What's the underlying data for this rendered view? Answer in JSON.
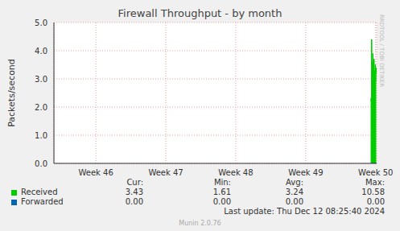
{
  "chart_data": {
    "type": "area",
    "title": "Firewall Throughput - by month",
    "y_label": "Packets/second",
    "x": [
      31.7,
      31.74,
      31.78,
      31.82,
      31.86,
      31.9,
      31.94,
      31.98,
      32.02,
      32.06,
      32.1,
      32.14,
      32.18,
      32.22,
      32.26
    ],
    "series": [
      {
        "name": "Received",
        "color": "#00cc00",
        "values": [
          2.3,
          2.2,
          4.4,
          3.6,
          2.9,
          3.9,
          3.1,
          2.8,
          3.7,
          3.3,
          3.0,
          3.5,
          2.9,
          3.2,
          3.4
        ]
      },
      {
        "name": "Forwarded",
        "color": "#0066b3",
        "values": [
          0,
          0,
          0,
          0,
          0,
          0,
          0,
          0,
          0,
          0,
          0,
          0,
          0,
          0,
          0
        ]
      }
    ],
    "xlim": [
      0,
      32.3
    ],
    "xticks": [
      {
        "value": 4.2,
        "label": "Week 46"
      },
      {
        "value": 11.2,
        "label": "Week 47"
      },
      {
        "value": 18.2,
        "label": "Week 48"
      },
      {
        "value": 25.2,
        "label": "Week 49"
      },
      {
        "value": 32.2,
        "label": "Week 50"
      }
    ],
    "ylim": [
      0,
      5
    ],
    "yticks": [
      {
        "value": 0,
        "label": "0.0"
      },
      {
        "value": 1,
        "label": "1.0"
      },
      {
        "value": 2,
        "label": "2.0"
      },
      {
        "value": 3,
        "label": "3.0"
      },
      {
        "value": 4,
        "label": "4.0"
      },
      {
        "value": 5,
        "label": "5.0"
      }
    ],
    "grid": true,
    "summary": {
      "columns": [
        "Cur:",
        "Min:",
        "Avg:",
        "Max:"
      ],
      "rows": [
        [
          "3.43",
          "1.61",
          "3.24",
          "10.58"
        ],
        [
          "0.00",
          "0.00",
          "0.00",
          "0.00"
        ]
      ]
    },
    "last_update": "Last update: Thu Dec 12 08:25:40 2024",
    "credit": "Munin 2.0.76",
    "side_label": "RRDTOOL / TOBI OETIKER"
  }
}
